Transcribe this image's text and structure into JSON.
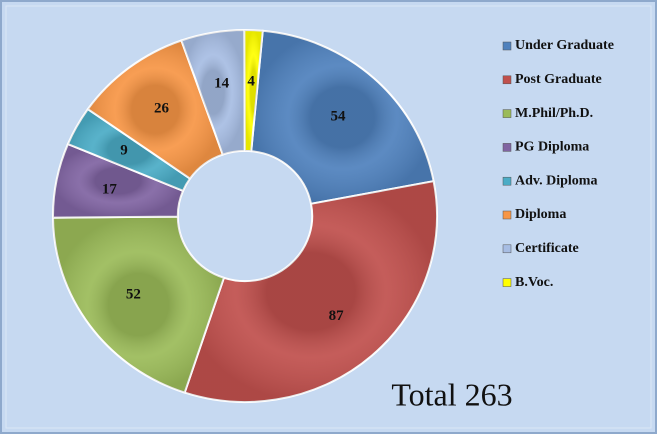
{
  "chart_data": {
    "type": "donut",
    "categories": [
      "Under Graduate",
      "Post Graduate",
      "M.Phil/Ph.D.",
      "PG Diploma",
      "Adv. Diploma",
      "Diploma",
      "Certificate",
      "B.Voc."
    ],
    "values": [
      54,
      87,
      52,
      17,
      9,
      26,
      14,
      4
    ],
    "colors": [
      "#4f81bd",
      "#c0504d",
      "#9bbb59",
      "#8064a2",
      "#4bacc6",
      "#f79646",
      "#a7bde3",
      "#ffff00"
    ],
    "annotation": "Total 263",
    "legend": "right"
  }
}
